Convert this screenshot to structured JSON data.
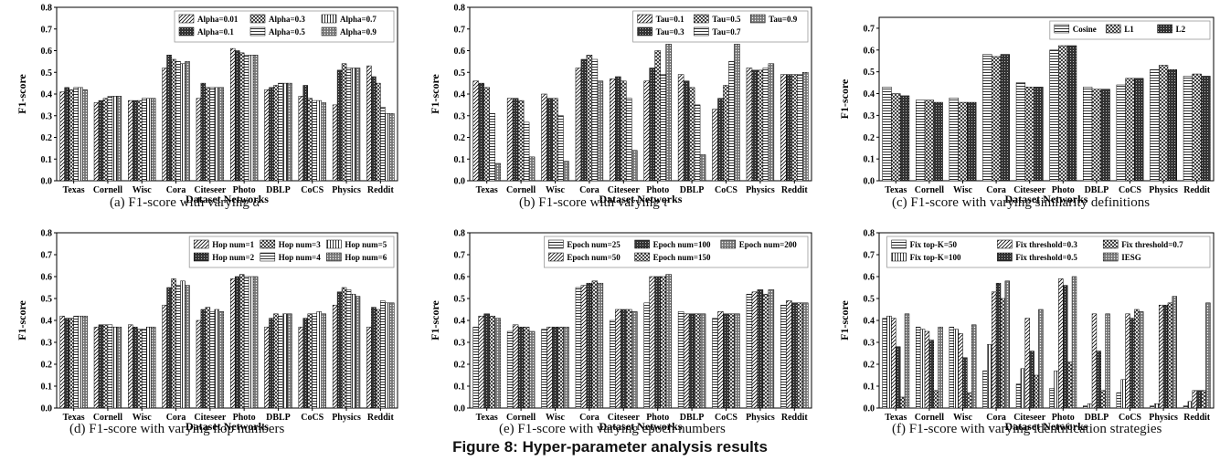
{
  "figure_title": "Figure 8: Hyper-parameter analysis results",
  "chart_data": [
    {
      "id": "a",
      "type": "bar",
      "caption_prefix": "(a) F1-score with varying ",
      "caption_symbol": "α",
      "caption_suffix": "",
      "xlabel": "Dataset Networks",
      "ylabel": "F1-score",
      "ylim": [
        0,
        0.8
      ],
      "yticks": [
        "0.0",
        "0.1",
        "0.2",
        "0.3",
        "0.4",
        "0.5",
        "0.6",
        "0.7",
        "0.8"
      ],
      "categories": [
        "Texas",
        "Cornell",
        "Wisc",
        "Cora",
        "Citeseer",
        "Photo",
        "DBLP",
        "CoCS",
        "Physics",
        "Reddit"
      ],
      "legend_position": "top-right",
      "legend_cols": 3,
      "series": [
        {
          "name": "Alpha=0.01",
          "pattern": "diag",
          "values": [
            0.41,
            0.36,
            0.37,
            0.52,
            0.38,
            0.61,
            0.42,
            0.39,
            0.35,
            0.53
          ]
        },
        {
          "name": "Alpha=0.1",
          "pattern": "dense",
          "values": [
            0.43,
            0.37,
            0.37,
            0.58,
            0.45,
            0.6,
            0.43,
            0.44,
            0.51,
            0.48
          ]
        },
        {
          "name": "Alpha=0.3",
          "pattern": "cross",
          "values": [
            0.42,
            0.38,
            0.37,
            0.56,
            0.43,
            0.59,
            0.44,
            0.38,
            0.54,
            0.45
          ]
        },
        {
          "name": "Alpha=0.5",
          "pattern": "hlines",
          "values": [
            0.43,
            0.39,
            0.38,
            0.55,
            0.43,
            0.58,
            0.45,
            0.37,
            0.52,
            0.34
          ]
        },
        {
          "name": "Alpha=0.7",
          "pattern": "vlines",
          "values": [
            0.43,
            0.39,
            0.38,
            0.54,
            0.43,
            0.58,
            0.45,
            0.37,
            0.52,
            0.31
          ]
        },
        {
          "name": "Alpha=0.9",
          "pattern": "dots",
          "values": [
            0.42,
            0.39,
            0.38,
            0.55,
            0.43,
            0.58,
            0.45,
            0.36,
            0.52,
            0.31
          ]
        }
      ]
    },
    {
      "id": "b",
      "type": "bar",
      "caption_prefix": "(b) F1-score with varying ",
      "caption_symbol": "τ",
      "caption_suffix": "",
      "xlabel": "Dataset Networks",
      "ylabel": "F1-score",
      "ylim": [
        0,
        0.8
      ],
      "yticks": [
        "0.0",
        "0.1",
        "0.2",
        "0.3",
        "0.4",
        "0.5",
        "0.6",
        "0.7",
        "0.8"
      ],
      "categories": [
        "Texas",
        "Cornell",
        "Wisc",
        "Cora",
        "Citeseer",
        "Photo",
        "DBLP",
        "CoCS",
        "Physics",
        "Reddit"
      ],
      "legend_position": "top-right",
      "legend_cols": 3,
      "series": [
        {
          "name": "Tau=0.1",
          "pattern": "diag",
          "values": [
            0.46,
            0.38,
            0.4,
            0.52,
            0.47,
            0.46,
            0.49,
            0.33,
            0.52,
            0.49
          ]
        },
        {
          "name": "Tau=0.3",
          "pattern": "dense",
          "values": [
            0.45,
            0.38,
            0.38,
            0.56,
            0.48,
            0.52,
            0.46,
            0.38,
            0.51,
            0.49
          ]
        },
        {
          "name": "Tau=0.5",
          "pattern": "cross",
          "values": [
            0.43,
            0.37,
            0.38,
            0.58,
            0.46,
            0.6,
            0.43,
            0.44,
            0.51,
            0.49
          ]
        },
        {
          "name": "Tau=0.7",
          "pattern": "hlines",
          "values": [
            0.31,
            0.27,
            0.3,
            0.56,
            0.38,
            0.49,
            0.35,
            0.55,
            0.52,
            0.49
          ]
        },
        {
          "name": "Tau=0.9",
          "pattern": "dots",
          "values": [
            0.08,
            0.11,
            0.09,
            0.46,
            0.14,
            0.63,
            0.12,
            0.63,
            0.54,
            0.5
          ]
        }
      ]
    },
    {
      "id": "c",
      "type": "bar",
      "caption_prefix": "(c) F1-score with varying similarity definitions",
      "caption_symbol": "",
      "caption_suffix": "",
      "xlabel": "Dataset Networks",
      "ylabel": "F1-score",
      "ylim": [
        0,
        0.75
      ],
      "yticks": [
        "0.0",
        "0.1",
        "0.2",
        "0.3",
        "0.4",
        "0.5",
        "0.6",
        "0.7"
      ],
      "categories": [
        "Texas",
        "Cornell",
        "Wisc",
        "Cora",
        "Citeseer",
        "Photo",
        "DBLP",
        "CoCS",
        "Physics",
        "Reddit"
      ],
      "legend_position": "top-right",
      "legend_cols": 3,
      "series": [
        {
          "name": "Cosine",
          "pattern": "hlines",
          "values": [
            0.43,
            0.37,
            0.38,
            0.58,
            0.45,
            0.6,
            0.43,
            0.44,
            0.51,
            0.48
          ]
        },
        {
          "name": "L1",
          "pattern": "cross",
          "values": [
            0.4,
            0.37,
            0.36,
            0.57,
            0.43,
            0.62,
            0.42,
            0.47,
            0.53,
            0.49
          ]
        },
        {
          "name": "L2",
          "pattern": "dense",
          "values": [
            0.39,
            0.36,
            0.36,
            0.58,
            0.43,
            0.62,
            0.42,
            0.47,
            0.51,
            0.48
          ]
        }
      ]
    },
    {
      "id": "d",
      "type": "bar",
      "caption_prefix": "(d) F1-score with varying hop numbers",
      "caption_symbol": "",
      "caption_suffix": "",
      "xlabel": "Dataset Networks",
      "ylabel": "F1-score",
      "ylim": [
        0,
        0.8
      ],
      "yticks": [
        "0.0",
        "0.1",
        "0.2",
        "0.3",
        "0.4",
        "0.5",
        "0.6",
        "0.7",
        "0.8"
      ],
      "categories": [
        "Texas",
        "Cornell",
        "Wisc",
        "Cora",
        "Citeseer",
        "Photo",
        "DBLP",
        "CoCS",
        "Physics",
        "Reddit"
      ],
      "legend_position": "top-right",
      "legend_cols": 3,
      "series": [
        {
          "name": "Hop num=1",
          "pattern": "diag",
          "values": [
            0.42,
            0.37,
            0.38,
            0.47,
            0.4,
            0.59,
            0.37,
            0.37,
            0.47,
            0.37
          ]
        },
        {
          "name": "Hop num=2",
          "pattern": "dense",
          "values": [
            0.41,
            0.38,
            0.37,
            0.55,
            0.45,
            0.6,
            0.41,
            0.41,
            0.53,
            0.46
          ]
        },
        {
          "name": "Hop num=3",
          "pattern": "cross",
          "values": [
            0.41,
            0.38,
            0.36,
            0.59,
            0.46,
            0.61,
            0.43,
            0.43,
            0.55,
            0.45
          ]
        },
        {
          "name": "Hop num=4",
          "pattern": "hlines",
          "values": [
            0.42,
            0.38,
            0.36,
            0.56,
            0.44,
            0.6,
            0.42,
            0.43,
            0.54,
            0.49
          ]
        },
        {
          "name": "Hop num=5",
          "pattern": "vlines",
          "values": [
            0.42,
            0.37,
            0.37,
            0.58,
            0.45,
            0.6,
            0.43,
            0.44,
            0.52,
            0.48
          ]
        },
        {
          "name": "Hop num=6",
          "pattern": "dots",
          "values": [
            0.42,
            0.37,
            0.37,
            0.56,
            0.44,
            0.6,
            0.43,
            0.43,
            0.51,
            0.48
          ]
        }
      ]
    },
    {
      "id": "e",
      "type": "bar",
      "caption_prefix": "(e) F1-score with varying epoch numbers",
      "caption_symbol": "",
      "caption_suffix": "",
      "xlabel": "Dataset Networks",
      "ylabel": "F1-score",
      "ylim": [
        0,
        0.8
      ],
      "yticks": [
        "0.0",
        "0.1",
        "0.2",
        "0.3",
        "0.4",
        "0.5",
        "0.6",
        "0.7",
        "0.8"
      ],
      "categories": [
        "Texas",
        "Cornell",
        "Wisc",
        "Cora",
        "Citeseer",
        "Photo",
        "DBLP",
        "CoCS",
        "Physics",
        "Reddit"
      ],
      "legend_position": "top-right",
      "legend_cols": 3,
      "series": [
        {
          "name": "Epoch num=25",
          "pattern": "hlines",
          "values": [
            0.37,
            0.35,
            0.36,
            0.55,
            0.4,
            0.48,
            0.44,
            0.41,
            0.52,
            0.47
          ]
        },
        {
          "name": "Epoch num=50",
          "pattern": "diag",
          "values": [
            0.42,
            0.38,
            0.37,
            0.56,
            0.45,
            0.6,
            0.43,
            0.44,
            0.53,
            0.49
          ]
        },
        {
          "name": "Epoch num=100",
          "pattern": "dense",
          "values": [
            0.43,
            0.37,
            0.37,
            0.57,
            0.45,
            0.6,
            0.43,
            0.43,
            0.54,
            0.48
          ]
        },
        {
          "name": "Epoch num=150",
          "pattern": "cross",
          "values": [
            0.42,
            0.37,
            0.37,
            0.58,
            0.45,
            0.6,
            0.43,
            0.43,
            0.52,
            0.48
          ]
        },
        {
          "name": "Epoch num=200",
          "pattern": "dots",
          "values": [
            0.41,
            0.35,
            0.37,
            0.57,
            0.44,
            0.61,
            0.43,
            0.43,
            0.54,
            0.48
          ]
        }
      ]
    },
    {
      "id": "f",
      "type": "bar",
      "caption_prefix": "(f) F1-score with varying identification strategies",
      "caption_symbol": "",
      "caption_suffix": "",
      "xlabel": "Dataset Networks",
      "ylabel": "F1-score",
      "ylim": [
        0,
        0.8
      ],
      "yticks": [
        "0.0",
        "0.1",
        "0.2",
        "0.3",
        "0.4",
        "0.5",
        "0.6",
        "0.7",
        "0.8"
      ],
      "categories": [
        "Texas",
        "Cornell",
        "Wisc",
        "Cora",
        "Citeseer",
        "Photo",
        "DBLP",
        "CoCS",
        "Physics",
        "Reddit"
      ],
      "legend_position": "top-right",
      "legend_cols": 3,
      "series": [
        {
          "name": "Fix top-K=50",
          "pattern": "hlines",
          "values": [
            0.41,
            0.37,
            0.37,
            0.17,
            0.11,
            0.09,
            0.01,
            0.07,
            0.01,
            0.01
          ]
        },
        {
          "name": "Fix top-K=100",
          "pattern": "vlines",
          "values": [
            0.42,
            0.36,
            0.36,
            0.29,
            0.18,
            0.17,
            0.02,
            0.13,
            0.02,
            0.03
          ]
        },
        {
          "name": "Fix threshold=0.3",
          "pattern": "diag",
          "values": [
            0.41,
            0.35,
            0.34,
            0.53,
            0.41,
            0.59,
            0.43,
            0.43,
            0.47,
            0.08
          ]
        },
        {
          "name": "Fix threshold=0.5",
          "pattern": "dense",
          "values": [
            0.28,
            0.31,
            0.23,
            0.57,
            0.26,
            0.56,
            0.26,
            0.41,
            0.47,
            0.08
          ]
        },
        {
          "name": "Fix threshold=0.7",
          "pattern": "cross",
          "values": [
            0.05,
            0.08,
            0.07,
            0.5,
            0.15,
            0.21,
            0.08,
            0.45,
            0.48,
            0.08
          ]
        },
        {
          "name": "IESG",
          "pattern": "dots",
          "values": [
            0.43,
            0.37,
            0.38,
            0.58,
            0.45,
            0.6,
            0.43,
            0.44,
            0.51,
            0.48
          ]
        }
      ]
    }
  ]
}
